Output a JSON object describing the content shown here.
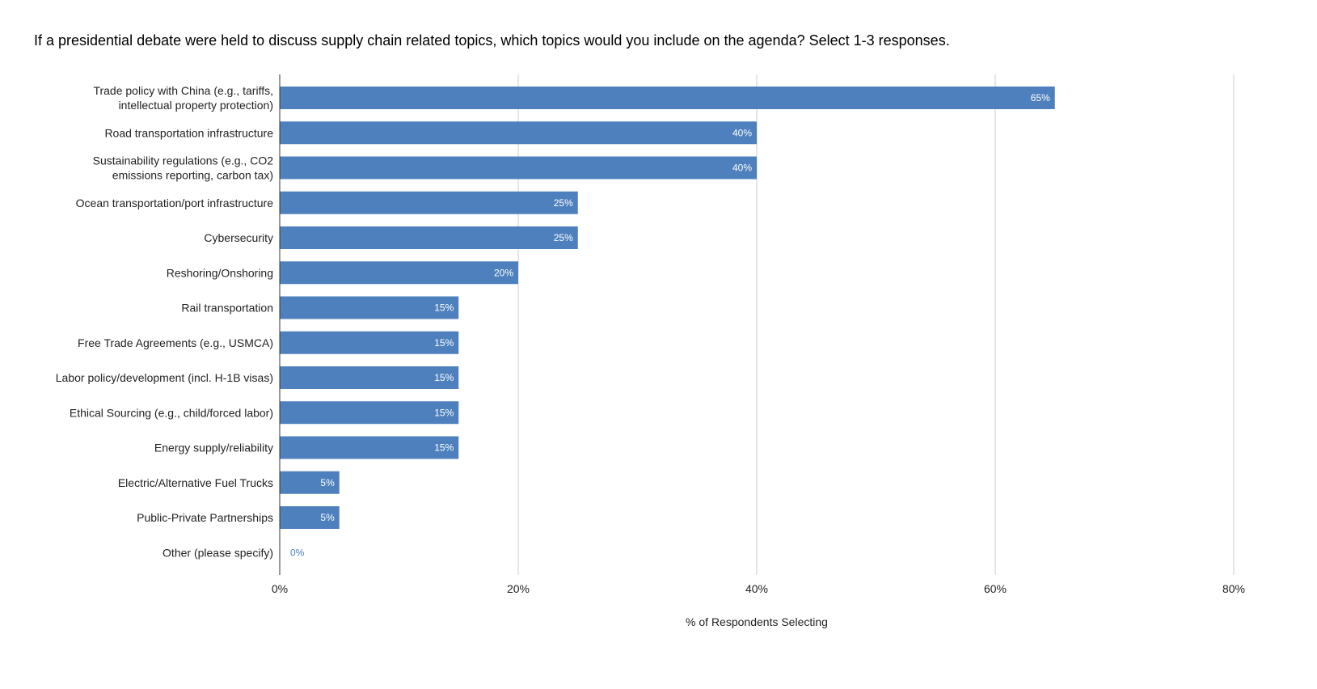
{
  "chart_data": {
    "type": "bar",
    "orientation": "horizontal",
    "title": "If a presidential debate were held to discuss supply chain related topics, which topics would you include on the agenda? Select 1-3 responses.",
    "xlabel": "% of Respondents Selecting",
    "ylabel": "",
    "xlim": [
      0,
      80
    ],
    "x_ticks": [
      0,
      20,
      40,
      60,
      80
    ],
    "x_tick_labels": [
      "0%",
      "20%",
      "40%",
      "60%",
      "80%"
    ],
    "grid": true,
    "legend": "none",
    "bar_color": "#4e80bd",
    "categories": [
      [
        "Trade policy with China (e.g., tariffs,",
        "intellectual property protection)"
      ],
      [
        "Road transportation infrastructure"
      ],
      [
        "Sustainability regulations (e.g., CO2",
        "emissions reporting, carbon tax)"
      ],
      [
        "Ocean transportation/port infrastructure"
      ],
      [
        "Cybersecurity"
      ],
      [
        "Reshoring/Onshoring"
      ],
      [
        "Rail transportation"
      ],
      [
        "Free Trade Agreements (e.g., USMCA)"
      ],
      [
        "Labor policy/development (incl. H-1B visas)"
      ],
      [
        "Ethical Sourcing (e.g., child/forced labor)"
      ],
      [
        "Energy supply/reliability"
      ],
      [
        "Electric/Alternative Fuel Trucks"
      ],
      [
        "Public-Private Partnerships"
      ],
      [
        "Other (please specify)"
      ]
    ],
    "values": [
      65,
      40,
      40,
      25,
      25,
      20,
      15,
      15,
      15,
      15,
      15,
      5,
      5,
      0
    ],
    "data_labels": [
      "65%",
      "40%",
      "40%",
      "25%",
      "25%",
      "20%",
      "15%",
      "15%",
      "15%",
      "15%",
      "15%",
      "5%",
      "5%",
      "0%"
    ]
  }
}
